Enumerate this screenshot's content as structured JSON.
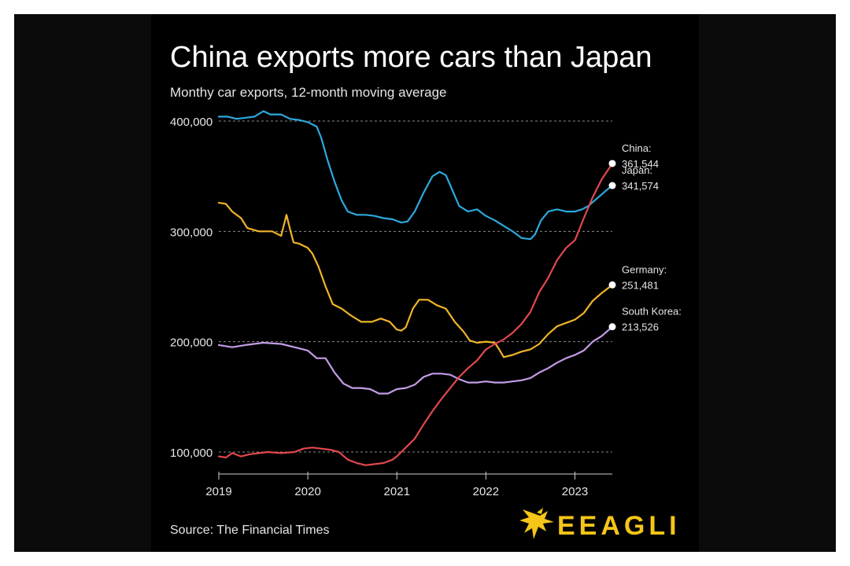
{
  "header": {
    "title": "China exports more cars than Japan",
    "subtitle": "Monthy car exports, 12-month moving average"
  },
  "footer": {
    "source": "Source: The Financial Times",
    "brand": "EEAGLI"
  },
  "colors": {
    "China": "#e0484e",
    "Japan": "#2ea8dc",
    "Germany": "#f0b429",
    "South Korea": "#c49ce6",
    "background": "#000000",
    "brand": "#f5c518"
  },
  "icons": {
    "brand_logo": "eagle-icon"
  },
  "chart_data": {
    "type": "line",
    "title": "China exports more cars than Japan",
    "subtitle": "Monthy car exports, 12-month moving average",
    "xlabel": "",
    "ylabel": "",
    "xlim": [
      2019.0,
      2023.42
    ],
    "ylim": [
      85000,
      410000
    ],
    "y_ticks": [
      100000,
      200000,
      300000,
      400000
    ],
    "y_tick_labels": [
      "100,000",
      "200,000",
      "300,000",
      "400,000"
    ],
    "x_ticks": [
      2019,
      2020,
      2021,
      2022,
      2023
    ],
    "x_tick_labels": [
      "2019",
      "2020",
      "2021",
      "2022",
      "2023"
    ],
    "grid": "horizontal dotted",
    "series": [
      {
        "name": "Japan",
        "end_label": "Japan:",
        "end_value_label": "341,574",
        "points": [
          [
            2019.0,
            404000
          ],
          [
            2019.1,
            404000
          ],
          [
            2019.2,
            402000
          ],
          [
            2019.3,
            403000
          ],
          [
            2019.4,
            404000
          ],
          [
            2019.5,
            409000
          ],
          [
            2019.58,
            406000
          ],
          [
            2019.7,
            406000
          ],
          [
            2019.8,
            402000
          ],
          [
            2019.9,
            401000
          ],
          [
            2020.0,
            399000
          ],
          [
            2020.1,
            395000
          ],
          [
            2020.15,
            385000
          ],
          [
            2020.22,
            365000
          ],
          [
            2020.3,
            345000
          ],
          [
            2020.38,
            328000
          ],
          [
            2020.45,
            318000
          ],
          [
            2020.55,
            315000
          ],
          [
            2020.65,
            315000
          ],
          [
            2020.75,
            314000
          ],
          [
            2020.85,
            312000
          ],
          [
            2020.95,
            311000
          ],
          [
            2021.05,
            308000
          ],
          [
            2021.12,
            309000
          ],
          [
            2021.2,
            318000
          ],
          [
            2021.3,
            335000
          ],
          [
            2021.4,
            350000
          ],
          [
            2021.48,
            354000
          ],
          [
            2021.55,
            351000
          ],
          [
            2021.62,
            338000
          ],
          [
            2021.7,
            323000
          ],
          [
            2021.8,
            318000
          ],
          [
            2021.9,
            320000
          ],
          [
            2022.0,
            314000
          ],
          [
            2022.1,
            310000
          ],
          [
            2022.2,
            305000
          ],
          [
            2022.3,
            300000
          ],
          [
            2022.4,
            294000
          ],
          [
            2022.5,
            293000
          ],
          [
            2022.55,
            297000
          ],
          [
            2022.62,
            310000
          ],
          [
            2022.7,
            318000
          ],
          [
            2022.8,
            320000
          ],
          [
            2022.9,
            318000
          ],
          [
            2023.0,
            318000
          ],
          [
            2023.08,
            320000
          ],
          [
            2023.15,
            323000
          ],
          [
            2023.25,
            330000
          ],
          [
            2023.35,
            337000
          ],
          [
            2023.42,
            341574
          ]
        ]
      },
      {
        "name": "Germany",
        "end_label": "Germany:",
        "end_value_label": "251,481",
        "points": [
          [
            2019.0,
            326000
          ],
          [
            2019.08,
            325000
          ],
          [
            2019.15,
            318000
          ],
          [
            2019.25,
            312000
          ],
          [
            2019.32,
            303000
          ],
          [
            2019.45,
            300000
          ],
          [
            2019.6,
            300000
          ],
          [
            2019.7,
            296000
          ],
          [
            2019.76,
            315000
          ],
          [
            2019.8,
            302000
          ],
          [
            2019.84,
            290000
          ],
          [
            2019.9,
            289000
          ],
          [
            2020.0,
            285000
          ],
          [
            2020.05,
            280000
          ],
          [
            2020.12,
            268000
          ],
          [
            2020.2,
            250000
          ],
          [
            2020.28,
            234000
          ],
          [
            2020.38,
            230000
          ],
          [
            2020.48,
            224000
          ],
          [
            2020.6,
            218000
          ],
          [
            2020.72,
            218000
          ],
          [
            2020.82,
            221000
          ],
          [
            2020.92,
            218000
          ],
          [
            2021.0,
            211000
          ],
          [
            2021.05,
            210000
          ],
          [
            2021.1,
            213000
          ],
          [
            2021.18,
            230000
          ],
          [
            2021.25,
            238000
          ],
          [
            2021.35,
            238000
          ],
          [
            2021.45,
            233000
          ],
          [
            2021.55,
            230000
          ],
          [
            2021.65,
            218000
          ],
          [
            2021.75,
            209000
          ],
          [
            2021.82,
            201000
          ],
          [
            2021.9,
            199000
          ],
          [
            2022.0,
            200000
          ],
          [
            2022.1,
            199000
          ],
          [
            2022.15,
            193000
          ],
          [
            2022.2,
            186000
          ],
          [
            2022.3,
            188000
          ],
          [
            2022.4,
            191000
          ],
          [
            2022.5,
            193000
          ],
          [
            2022.6,
            198000
          ],
          [
            2022.7,
            207000
          ],
          [
            2022.8,
            214000
          ],
          [
            2022.9,
            217000
          ],
          [
            2023.0,
            220000
          ],
          [
            2023.1,
            226000
          ],
          [
            2023.2,
            237000
          ],
          [
            2023.3,
            244000
          ],
          [
            2023.42,
            251481
          ]
        ]
      },
      {
        "name": "South Korea",
        "end_label": "South Korea:",
        "end_value_label": "213,526",
        "points": [
          [
            2019.0,
            197000
          ],
          [
            2019.15,
            195000
          ],
          [
            2019.3,
            197000
          ],
          [
            2019.5,
            199000
          ],
          [
            2019.7,
            198000
          ],
          [
            2019.85,
            195000
          ],
          [
            2020.0,
            192000
          ],
          [
            2020.1,
            185000
          ],
          [
            2020.2,
            185000
          ],
          [
            2020.3,
            172000
          ],
          [
            2020.4,
            162000
          ],
          [
            2020.5,
            158000
          ],
          [
            2020.6,
            158000
          ],
          [
            2020.7,
            157000
          ],
          [
            2020.8,
            153000
          ],
          [
            2020.9,
            153000
          ],
          [
            2021.0,
            157000
          ],
          [
            2021.1,
            158000
          ],
          [
            2021.2,
            161000
          ],
          [
            2021.3,
            168000
          ],
          [
            2021.4,
            171000
          ],
          [
            2021.5,
            171000
          ],
          [
            2021.6,
            170000
          ],
          [
            2021.7,
            166000
          ],
          [
            2021.8,
            163000
          ],
          [
            2021.9,
            163000
          ],
          [
            2022.0,
            164000
          ],
          [
            2022.1,
            163000
          ],
          [
            2022.2,
            163000
          ],
          [
            2022.3,
            164000
          ],
          [
            2022.4,
            165000
          ],
          [
            2022.5,
            167000
          ],
          [
            2022.6,
            172000
          ],
          [
            2022.7,
            176000
          ],
          [
            2022.8,
            181000
          ],
          [
            2022.9,
            185000
          ],
          [
            2023.0,
            188000
          ],
          [
            2023.1,
            192000
          ],
          [
            2023.2,
            200000
          ],
          [
            2023.3,
            205000
          ],
          [
            2023.42,
            213526
          ]
        ]
      },
      {
        "name": "China",
        "end_label": "China:",
        "end_value_label": "361,544",
        "points": [
          [
            2019.0,
            96000
          ],
          [
            2019.08,
            95000
          ],
          [
            2019.15,
            99000
          ],
          [
            2019.25,
            96000
          ],
          [
            2019.35,
            98000
          ],
          [
            2019.45,
            99000
          ],
          [
            2019.55,
            100000
          ],
          [
            2019.7,
            99000
          ],
          [
            2019.85,
            100000
          ],
          [
            2019.95,
            103000
          ],
          [
            2020.05,
            104000
          ],
          [
            2020.15,
            103000
          ],
          [
            2020.25,
            102000
          ],
          [
            2020.35,
            100000
          ],
          [
            2020.45,
            93000
          ],
          [
            2020.55,
            90000
          ],
          [
            2020.65,
            88000
          ],
          [
            2020.75,
            89000
          ],
          [
            2020.85,
            90000
          ],
          [
            2020.95,
            93000
          ],
          [
            2021.0,
            96000
          ],
          [
            2021.1,
            104000
          ],
          [
            2021.2,
            112000
          ],
          [
            2021.3,
            125000
          ],
          [
            2021.4,
            137000
          ],
          [
            2021.5,
            148000
          ],
          [
            2021.6,
            158000
          ],
          [
            2021.7,
            168000
          ],
          [
            2021.8,
            176000
          ],
          [
            2021.9,
            183000
          ],
          [
            2022.0,
            193000
          ],
          [
            2022.1,
            198000
          ],
          [
            2022.2,
            202000
          ],
          [
            2022.3,
            208000
          ],
          [
            2022.4,
            216000
          ],
          [
            2022.5,
            227000
          ],
          [
            2022.6,
            245000
          ],
          [
            2022.7,
            258000
          ],
          [
            2022.8,
            274000
          ],
          [
            2022.9,
            285000
          ],
          [
            2023.0,
            292000
          ],
          [
            2023.1,
            312000
          ],
          [
            2023.2,
            331000
          ],
          [
            2023.3,
            347000
          ],
          [
            2023.42,
            361544
          ]
        ]
      }
    ]
  }
}
